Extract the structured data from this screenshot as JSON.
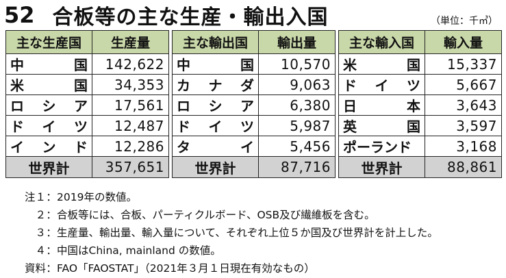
{
  "title": {
    "number": "52",
    "text": "合板等の主な生産・輸出入国"
  },
  "unit": "（単位：千㎥）",
  "tables": [
    {
      "headers": [
        "主な生産国",
        "生産量"
      ],
      "rows": [
        {
          "name": [
            "中",
            "国"
          ],
          "value": "142,622"
        },
        {
          "name": [
            "米",
            "国"
          ],
          "value": "34,353"
        },
        {
          "name": [
            "ロ",
            "シ",
            "ア"
          ],
          "value": "17,561"
        },
        {
          "name": [
            "ド",
            "イ",
            "ツ"
          ],
          "value": "12,487"
        },
        {
          "name": [
            "イ",
            "ン",
            "ド"
          ],
          "value": "12,286"
        }
      ],
      "total": {
        "label": "世界計",
        "value": "357,651"
      }
    },
    {
      "headers": [
        "主な輸出国",
        "輸出量"
      ],
      "rows": [
        {
          "name": [
            "中",
            "国"
          ],
          "value": "10,570"
        },
        {
          "name": [
            "カ",
            "ナ",
            "ダ"
          ],
          "value": "9,063"
        },
        {
          "name": [
            "ロ",
            "シ",
            "ア"
          ],
          "value": "6,380"
        },
        {
          "name": [
            "ド",
            "イ",
            "ツ"
          ],
          "value": "5,987"
        },
        {
          "name": [
            "タ",
            "イ"
          ],
          "value": "5,456"
        }
      ],
      "total": {
        "label": "世界計",
        "value": "87,716"
      }
    },
    {
      "headers": [
        "主な輸入国",
        "輸入量"
      ],
      "rows": [
        {
          "name": [
            "米",
            "国"
          ],
          "value": "15,337"
        },
        {
          "name": [
            "ド",
            "イ",
            "ツ"
          ],
          "value": "5,667"
        },
        {
          "name": [
            "日",
            "本"
          ],
          "value": "3,643"
        },
        {
          "name": [
            "英",
            "国"
          ],
          "value": "3,597"
        },
        {
          "name": [
            "ポーランド"
          ],
          "value": "3,168"
        }
      ],
      "total": {
        "label": "世界計",
        "value": "88,861"
      }
    }
  ],
  "notes": [
    {
      "label": "注１",
      "text": "2019年の数値。"
    },
    {
      "label": "２",
      "text": "合板等には、合板、パーティクルボード、OSB及び繊維板を含む。"
    },
    {
      "label": "３",
      "text": "生産量、輸出量、輸入量について、それぞれ上位５か国及び世界計を計上した。"
    },
    {
      "label": "４",
      "text": "中国はChina, mainland の数値。"
    },
    {
      "label": "資料",
      "text": "FAO「FAOSTAT」（2021年３月１日現在有効なもの）"
    }
  ]
}
